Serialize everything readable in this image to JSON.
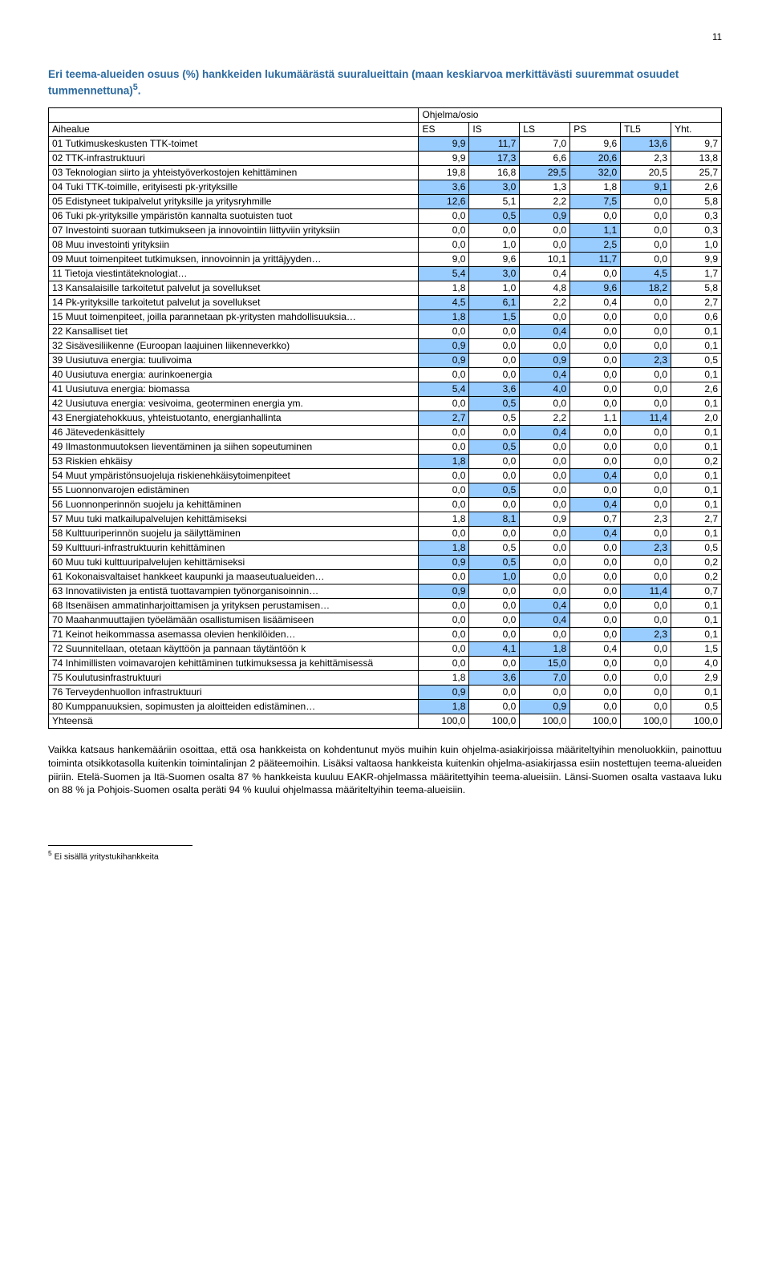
{
  "page_number": "11",
  "title": "Eri teema-alueiden osuus (%) hankkeiden lukumäärästä suuralueittain (maan keskiarvoa merkittävästi suuremmat osuudet tummennettuna)",
  "title_sup": "5",
  "title_suffix": ".",
  "header_group": "Ohjelma/osio",
  "columns": [
    "Aihealue",
    "ES",
    "IS",
    "LS",
    "PS",
    "TL5",
    "Yht."
  ],
  "highlight_color": "#99ccff",
  "rows": [
    {
      "l": "01 Tutkimuskeskusten TTK-toimet",
      "v": [
        "9,9",
        "11,7",
        "7,0",
        "9,6",
        "13,6",
        "9,7"
      ],
      "h": [
        1,
        1,
        0,
        0,
        1,
        0
      ]
    },
    {
      "l": "02 TTK-infrastruktuuri",
      "v": [
        "9,9",
        "17,3",
        "6,6",
        "20,6",
        "2,3",
        "13,8"
      ],
      "h": [
        0,
        1,
        0,
        1,
        0,
        0
      ]
    },
    {
      "l": "03 Teknologian siirto ja yhteistyöverkostojen kehittäminen",
      "v": [
        "19,8",
        "16,8",
        "29,5",
        "32,0",
        "20,5",
        "25,7"
      ],
      "h": [
        0,
        0,
        1,
        1,
        0,
        0
      ]
    },
    {
      "l": "04 Tuki TTK-toimille, erityisesti pk-yrityksille",
      "v": [
        "3,6",
        "3,0",
        "1,3",
        "1,8",
        "9,1",
        "2,6"
      ],
      "h": [
        1,
        1,
        0,
        0,
        1,
        0
      ]
    },
    {
      "l": "05 Edistyneet tukipalvelut yrityksille ja yritysryhmille",
      "v": [
        "12,6",
        "5,1",
        "2,2",
        "7,5",
        "0,0",
        "5,8"
      ],
      "h": [
        1,
        0,
        0,
        1,
        0,
        0
      ]
    },
    {
      "l": "06 Tuki pk-yrityksille ympäristön kannalta suotuisten tuot",
      "v": [
        "0,0",
        "0,5",
        "0,9",
        "0,0",
        "0,0",
        "0,3"
      ],
      "h": [
        0,
        1,
        1,
        0,
        0,
        0
      ]
    },
    {
      "l": "07 Investointi suoraan tutkimukseen ja innovointiin liittyviin yrityksiin",
      "v": [
        "0,0",
        "0,0",
        "0,0",
        "1,1",
        "0,0",
        "0,3"
      ],
      "h": [
        0,
        0,
        0,
        1,
        0,
        0
      ]
    },
    {
      "l": "08 Muu investointi yrityksiin",
      "v": [
        "0,0",
        "1,0",
        "0,0",
        "2,5",
        "0,0",
        "1,0"
      ],
      "h": [
        0,
        0,
        0,
        1,
        0,
        0
      ]
    },
    {
      "l": "09 Muut toimenpiteet tutkimuksen, innovoinnin ja yrittäjyyden…",
      "v": [
        "9,0",
        "9,6",
        "10,1",
        "11,7",
        "0,0",
        "9,9"
      ],
      "h": [
        0,
        0,
        0,
        1,
        0,
        0
      ]
    },
    {
      "l": "11 Tietoja viestintäteknologiat…",
      "v": [
        "5,4",
        "3,0",
        "0,4",
        "0,0",
        "4,5",
        "1,7"
      ],
      "h": [
        1,
        1,
        0,
        0,
        1,
        0
      ]
    },
    {
      "l": "13 Kansalaisille tarkoitetut palvelut ja sovellukset",
      "v": [
        "1,8",
        "1,0",
        "4,8",
        "9,6",
        "18,2",
        "5,8"
      ],
      "h": [
        0,
        0,
        0,
        1,
        1,
        0
      ]
    },
    {
      "l": "14 Pk-yrityksille tarkoitetut palvelut ja sovellukset",
      "v": [
        "4,5",
        "6,1",
        "2,2",
        "0,4",
        "0,0",
        "2,7"
      ],
      "h": [
        1,
        1,
        0,
        0,
        0,
        0
      ]
    },
    {
      "l": "15 Muut toimenpiteet, joilla parannetaan pk-yritysten mahdollisuuksia…",
      "v": [
        "1,8",
        "1,5",
        "0,0",
        "0,0",
        "0,0",
        "0,6"
      ],
      "h": [
        1,
        1,
        0,
        0,
        0,
        0
      ]
    },
    {
      "l": "22 Kansalliset tiet",
      "v": [
        "0,0",
        "0,0",
        "0,4",
        "0,0",
        "0,0",
        "0,1"
      ],
      "h": [
        0,
        0,
        1,
        0,
        0,
        0
      ]
    },
    {
      "l": "32 Sisävesiliikenne (Euroopan laajuinen liikenneverkko)",
      "v": [
        "0,9",
        "0,0",
        "0,0",
        "0,0",
        "0,0",
        "0,1"
      ],
      "h": [
        1,
        0,
        0,
        0,
        0,
        0
      ]
    },
    {
      "l": "39 Uusiutuva energia: tuulivoima",
      "v": [
        "0,9",
        "0,0",
        "0,9",
        "0,0",
        "2,3",
        "0,5"
      ],
      "h": [
        1,
        0,
        1,
        0,
        1,
        0
      ]
    },
    {
      "l": "40 Uusiutuva energia: aurinkoenergia",
      "v": [
        "0,0",
        "0,0",
        "0,4",
        "0,0",
        "0,0",
        "0,1"
      ],
      "h": [
        0,
        0,
        1,
        0,
        0,
        0
      ]
    },
    {
      "l": "41 Uusiutuva energia: biomassa",
      "v": [
        "5,4",
        "3,6",
        "4,0",
        "0,0",
        "0,0",
        "2,6"
      ],
      "h": [
        1,
        1,
        1,
        0,
        0,
        0
      ]
    },
    {
      "l": "42 Uusiutuva energia: vesivoima, geoterminen energia ym.",
      "v": [
        "0,0",
        "0,5",
        "0,0",
        "0,0",
        "0,0",
        "0,1"
      ],
      "h": [
        0,
        1,
        0,
        0,
        0,
        0
      ]
    },
    {
      "l": "43 Energiatehokkuus, yhteistuotanto, energianhallinta",
      "v": [
        "2,7",
        "0,5",
        "2,2",
        "1,1",
        "11,4",
        "2,0"
      ],
      "h": [
        1,
        0,
        0,
        0,
        1,
        0
      ]
    },
    {
      "l": "46 Jätevedenkäsittely",
      "v": [
        "0,0",
        "0,0",
        "0,4",
        "0,0",
        "0,0",
        "0,1"
      ],
      "h": [
        0,
        0,
        1,
        0,
        0,
        0
      ]
    },
    {
      "l": "49 Ilmastonmuutoksen lieventäminen ja siihen sopeutuminen",
      "v": [
        "0,0",
        "0,5",
        "0,0",
        "0,0",
        "0,0",
        "0,1"
      ],
      "h": [
        0,
        1,
        0,
        0,
        0,
        0
      ]
    },
    {
      "l": "53 Riskien ehkäisy",
      "v": [
        "1,8",
        "0,0",
        "0,0",
        "0,0",
        "0,0",
        "0,2"
      ],
      "h": [
        1,
        0,
        0,
        0,
        0,
        0
      ]
    },
    {
      "l": "54 Muut ympäristönsuojeluja riskienehkäisytoimenpiteet",
      "v": [
        "0,0",
        "0,0",
        "0,0",
        "0,4",
        "0,0",
        "0,1"
      ],
      "h": [
        0,
        0,
        0,
        1,
        0,
        0
      ]
    },
    {
      "l": "55 Luonnonvarojen edistäminen",
      "v": [
        "0,0",
        "0,5",
        "0,0",
        "0,0",
        "0,0",
        "0,1"
      ],
      "h": [
        0,
        1,
        0,
        0,
        0,
        0
      ]
    },
    {
      "l": "56 Luonnonperinnön suojelu ja kehittäminen",
      "v": [
        "0,0",
        "0,0",
        "0,0",
        "0,4",
        "0,0",
        "0,1"
      ],
      "h": [
        0,
        0,
        0,
        1,
        0,
        0
      ]
    },
    {
      "l": "57 Muu tuki matkailupalvelujen kehittämiseksi",
      "v": [
        "1,8",
        "8,1",
        "0,9",
        "0,7",
        "2,3",
        "2,7"
      ],
      "h": [
        0,
        1,
        0,
        0,
        0,
        0
      ]
    },
    {
      "l": "58 Kulttuuriperinnön suojelu ja säilyttäminen",
      "v": [
        "0,0",
        "0,0",
        "0,0",
        "0,4",
        "0,0",
        "0,1"
      ],
      "h": [
        0,
        0,
        0,
        1,
        0,
        0
      ]
    },
    {
      "l": "59 Kulttuuri-infrastruktuurin kehittäminen",
      "v": [
        "1,8",
        "0,5",
        "0,0",
        "0,0",
        "2,3",
        "0,5"
      ],
      "h": [
        1,
        0,
        0,
        0,
        1,
        0
      ]
    },
    {
      "l": "60 Muu tuki kulttuuripalvelujen kehittämiseksi",
      "v": [
        "0,9",
        "0,5",
        "0,0",
        "0,0",
        "0,0",
        "0,2"
      ],
      "h": [
        1,
        1,
        0,
        0,
        0,
        0
      ]
    },
    {
      "l": "61 Kokonaisvaltaiset hankkeet kaupunki ja maaseutualueiden…",
      "v": [
        "0,0",
        "1,0",
        "0,0",
        "0,0",
        "0,0",
        "0,2"
      ],
      "h": [
        0,
        1,
        0,
        0,
        0,
        0
      ]
    },
    {
      "l": "63 Innovatiivisten ja entistä tuottavampien työnorganisoinnin…",
      "v": [
        "0,9",
        "0,0",
        "0,0",
        "0,0",
        "11,4",
        "0,7"
      ],
      "h": [
        1,
        0,
        0,
        0,
        1,
        0
      ]
    },
    {
      "l": "68 Itsenäisen ammatinharjoittamisen ja yrityksen perustamisen…",
      "v": [
        "0,0",
        "0,0",
        "0,4",
        "0,0",
        "0,0",
        "0,1"
      ],
      "h": [
        0,
        0,
        1,
        0,
        0,
        0
      ]
    },
    {
      "l": "70 Maahanmuuttajien työelämään osallistumisen lisäämiseen",
      "v": [
        "0,0",
        "0,0",
        "0,4",
        "0,0",
        "0,0",
        "0,1"
      ],
      "h": [
        0,
        0,
        1,
        0,
        0,
        0
      ]
    },
    {
      "l": "71 Keinot heikommassa asemassa olevien henkilöiden…",
      "v": [
        "0,0",
        "0,0",
        "0,0",
        "0,0",
        "2,3",
        "0,1"
      ],
      "h": [
        0,
        0,
        0,
        0,
        1,
        0
      ]
    },
    {
      "l": "72 Suunnitellaan, otetaan käyttöön ja pannaan täytäntöön k",
      "v": [
        "0,0",
        "4,1",
        "1,8",
        "0,4",
        "0,0",
        "1,5"
      ],
      "h": [
        0,
        1,
        1,
        0,
        0,
        0
      ]
    },
    {
      "l": "74 Inhimillisten voimavarojen kehittäminen tutkimuksessa ja kehittämisessä",
      "v": [
        "0,0",
        "0,0",
        "15,0",
        "0,0",
        "0,0",
        "4,0"
      ],
      "h": [
        0,
        0,
        1,
        0,
        0,
        0
      ]
    },
    {
      "l": "75 Koulutusinfrastruktuuri",
      "v": [
        "1,8",
        "3,6",
        "7,0",
        "0,0",
        "0,0",
        "2,9"
      ],
      "h": [
        0,
        1,
        1,
        0,
        0,
        0
      ]
    },
    {
      "l": "76 Terveydenhuollon infrastruktuuri",
      "v": [
        "0,9",
        "0,0",
        "0,0",
        "0,0",
        "0,0",
        "0,1"
      ],
      "h": [
        1,
        0,
        0,
        0,
        0,
        0
      ]
    },
    {
      "l": "80 Kumppanuuksien, sopimusten ja aloitteiden edistäminen…",
      "v": [
        "1,8",
        "0,0",
        "0,9",
        "0,0",
        "0,0",
        "0,5"
      ],
      "h": [
        1,
        0,
        1,
        0,
        0,
        0
      ]
    },
    {
      "l": "Yhteensä",
      "v": [
        "100,0",
        "100,0",
        "100,0",
        "100,0",
        "100,0",
        "100,0"
      ],
      "h": [
        0,
        0,
        0,
        0,
        0,
        0
      ]
    }
  ],
  "paragraph": "Vaikka katsaus hankemääriin osoittaa, että osa hankkeista on kohdentunut myös muihin kuin ohjelma-asiakirjoissa määriteltyihin menoluokkiin, painottuu toiminta otsikkotasolla kuitenkin toimintalinjan 2 pääteemoihin. Lisäksi valtaosa hankkeista kuitenkin ohjelma-asiakirjassa esiin nostettujen teema-alueiden piiriin. Etelä-Suomen ja Itä-Suomen osalta 87 % hankkeista kuuluu EAKR-ohjelmassa määritettyihin teema-alueisiin. Länsi-Suomen osalta vastaava luku on 88 % ja Pohjois-Suomen osalta peräti 94 % kuului ohjelmassa määriteltyihin teema-alueisiin.",
  "footnote_sup": "5",
  "footnote_text": " Ei sisällä yritystukihankkeita"
}
